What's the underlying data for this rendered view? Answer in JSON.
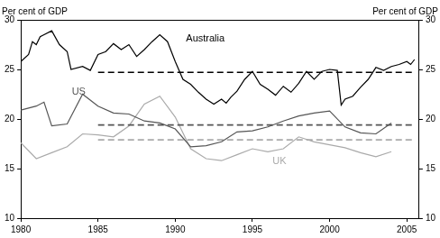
{
  "chart_data": {
    "type": "line",
    "ylabel": "Per cent of GDP",
    "y2label": "Per cent of GDP",
    "xlim": [
      1980,
      2005.8
    ],
    "xticks": [
      1980,
      1985,
      1990,
      1995,
      2000,
      2005
    ],
    "ylim": [
      10,
      30
    ],
    "yticks": [
      10,
      15,
      20,
      25,
      30
    ],
    "y2lim": [
      10,
      30
    ],
    "y2ticks": [
      10,
      15,
      20,
      25,
      30
    ],
    "grid": false,
    "series": [
      {
        "name": "Australia",
        "color": "#000000",
        "x": [
          1980,
          1980.5,
          1980.75,
          1981,
          1981.25,
          1981.5,
          1982,
          1982.5,
          1983,
          1983.25,
          1984,
          1984.5,
          1985,
          1985.5,
          1986,
          1986.5,
          1987,
          1987.5,
          1988,
          1988.5,
          1989,
          1989.5,
          1990,
          1990.5,
          1991,
          1991.5,
          1992,
          1992.5,
          1993,
          1993.3,
          1993.6,
          1994,
          1994.5,
          1995,
          1995.5,
          1996,
          1996.5,
          1997,
          1997.5,
          1998,
          1998.5,
          1999,
          1999.5,
          2000,
          2000.5,
          2000.75,
          2001,
          2001.5,
          2002,
          2002.5,
          2003,
          2003.5,
          2004,
          2004.5,
          2005,
          2005.25,
          2005.5
        ],
        "values": [
          25.8,
          26.5,
          27.8,
          27.5,
          28.3,
          28.5,
          28.9,
          27.5,
          26.8,
          25.0,
          25.3,
          24.9,
          26.5,
          26.8,
          27.6,
          27.0,
          27.5,
          26.3,
          27.0,
          27.8,
          28.5,
          27.8,
          25.8,
          24.0,
          23.5,
          22.7,
          22.0,
          21.5,
          22.0,
          21.6,
          22.2,
          22.8,
          24.0,
          24.8,
          23.5,
          23.0,
          22.4,
          23.3,
          22.7,
          23.6,
          24.8,
          24.0,
          24.8,
          25.0,
          24.9,
          21.4,
          22.0,
          22.3,
          23.2,
          24.0,
          25.2,
          24.9,
          25.3,
          25.5,
          25.8,
          25.5,
          26.0
        ],
        "average": {
          "value": 24.7,
          "from": 1985,
          "to": 2005.5
        }
      },
      {
        "name": "US",
        "color": "#555555",
        "x": [
          1980,
          1981,
          1981.5,
          1982,
          1983,
          1984,
          1985,
          1986,
          1987,
          1988,
          1989,
          1990,
          1991,
          1992,
          1993,
          1994,
          1995,
          1996,
          1997,
          1998,
          1999,
          2000,
          2001,
          2002,
          2003,
          2004
        ],
        "values": [
          20.9,
          21.3,
          21.7,
          19.3,
          19.5,
          22.5,
          21.3,
          20.6,
          20.5,
          19.8,
          19.6,
          19.0,
          17.2,
          17.3,
          17.7,
          18.7,
          18.8,
          19.2,
          19.8,
          20.3,
          20.6,
          20.8,
          19.2,
          18.6,
          18.5,
          19.6
        ],
        "average": {
          "value": 19.4,
          "from": 1985,
          "to": 2005.5
        }
      },
      {
        "name": "UK",
        "color": "#aaaaaa",
        "x": [
          1980,
          1981,
          1982,
          1983,
          1984,
          1985,
          1986,
          1987,
          1988,
          1989,
          1990,
          1991,
          1992,
          1993,
          1994,
          1995,
          1996,
          1997,
          1998,
          1999,
          2000,
          2001,
          2002,
          2003,
          2004
        ],
        "values": [
          17.6,
          16.0,
          16.6,
          17.2,
          18.5,
          18.4,
          18.2,
          19.3,
          21.5,
          22.3,
          20.2,
          17.0,
          16.0,
          15.8,
          16.4,
          17.0,
          16.7,
          17.0,
          18.2,
          17.7,
          17.4,
          17.1,
          16.6,
          16.2,
          16.7
        ],
        "average": {
          "value": 17.9,
          "from": 1985,
          "to": 2005.5
        }
      }
    ]
  }
}
